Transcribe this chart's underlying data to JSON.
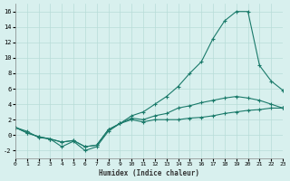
{
  "xlabel": "Humidex (Indice chaleur)",
  "background_color": "#d8f0ee",
  "grid_color": "#b8dcd8",
  "line_color": "#1a7a6a",
  "xlim": [
    0,
    23
  ],
  "ylim": [
    -3,
    17
  ],
  "xticks": [
    0,
    1,
    2,
    3,
    4,
    5,
    6,
    7,
    8,
    9,
    10,
    11,
    12,
    13,
    14,
    15,
    16,
    17,
    18,
    19,
    20,
    21,
    22,
    23
  ],
  "yticks": [
    -2,
    0,
    2,
    4,
    6,
    8,
    10,
    12,
    14,
    16
  ],
  "s1_x": [
    0,
    1,
    2,
    3,
    4,
    5,
    6,
    7,
    8,
    9,
    10,
    11,
    12,
    13,
    14,
    15,
    16,
    17,
    18,
    19,
    20,
    21,
    22,
    23
  ],
  "s1_y": [
    1.0,
    0.3,
    -0.2,
    -0.5,
    -0.9,
    -0.7,
    -1.5,
    -1.3,
    0.7,
    1.5,
    2.0,
    1.7,
    2.0,
    2.0,
    2.0,
    2.2,
    2.3,
    2.5,
    2.8,
    3.0,
    3.2,
    3.3,
    3.5,
    3.5
  ],
  "s2_x": [
    0,
    1,
    2,
    3,
    4,
    5,
    6,
    7,
    8,
    9,
    10,
    11,
    12,
    13,
    14,
    15,
    16,
    17,
    18,
    19,
    20,
    21,
    22,
    23
  ],
  "s2_y": [
    1.0,
    0.3,
    -0.2,
    -0.5,
    -0.9,
    -0.7,
    -1.5,
    -1.3,
    0.7,
    1.5,
    2.2,
    2.0,
    2.5,
    2.8,
    3.5,
    3.8,
    4.2,
    4.5,
    4.8,
    5.0,
    4.8,
    4.5,
    4.0,
    3.5
  ],
  "s3_x": [
    0,
    1,
    2,
    3,
    4,
    5,
    6,
    7,
    8,
    9,
    10,
    11,
    12,
    13,
    14,
    15,
    16,
    17,
    18,
    19,
    20,
    21,
    22,
    23
  ],
  "s3_y": [
    1.0,
    0.5,
    -0.3,
    -0.5,
    -1.5,
    -0.8,
    -2.0,
    -1.5,
    0.5,
    1.5,
    2.5,
    3.0,
    4.0,
    5.0,
    6.3,
    8.0,
    9.5,
    12.5,
    14.8,
    16.0,
    16.0,
    9.0,
    7.0,
    5.8
  ]
}
